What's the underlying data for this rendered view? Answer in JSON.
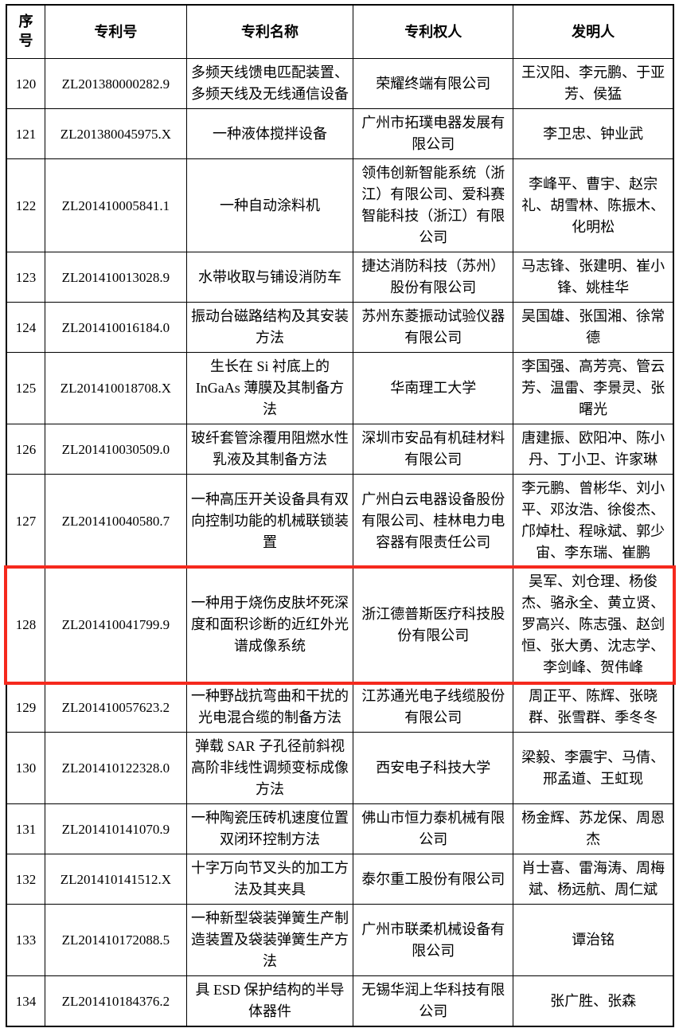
{
  "page": {
    "background": "#ffffff"
  },
  "table": {
    "headers": [
      "序号",
      "专利号",
      "专利名称",
      "专利权人",
      "发明人"
    ],
    "rows": [
      {
        "no": "120",
        "patent_no": "ZL201380000282.9",
        "title": "多频天线馈电匹配装置、多频天线及无线通信设备",
        "assignee": "荣耀终端有限公司",
        "inventors": "王汉阳、李元鹏、于亚芳、侯猛"
      },
      {
        "no": "121",
        "patent_no": "ZL201380045975.X",
        "title": "一种液体搅拌设备",
        "assignee": "广州市拓璞电器发展有限公司",
        "inventors": "李卫忠、钟业武"
      },
      {
        "no": "122",
        "patent_no": "ZL201410005841.1",
        "title": "一种自动涂料机",
        "assignee": "领伟创新智能系统（浙江）有限公司、爱科赛智能科技（浙江）有限公司",
        "inventors": "李峰平、曹宇、赵宗礼、胡雪林、陈振木、化明松"
      },
      {
        "no": "123",
        "patent_no": "ZL201410013028.9",
        "title": "水带收取与铺设消防车",
        "assignee": "捷达消防科技（苏州）股份有限公司",
        "inventors": "马志锋、张建明、崔小锋、姚桂华"
      },
      {
        "no": "124",
        "patent_no": "ZL201410016184.0",
        "title": "振动台磁路结构及其安装方法",
        "assignee": "苏州东菱振动试验仪器有限公司",
        "inventors": "吴国雄、张国湘、徐常德"
      },
      {
        "no": "125",
        "patent_no": "ZL201410018708.X",
        "title": "生长在 Si 衬底上的 InGaAs 薄膜及其制备方法",
        "assignee": "华南理工大学",
        "inventors": "李国强、高芳亮、管云芳、温雷、李景灵、张曙光"
      },
      {
        "no": "126",
        "patent_no": "ZL201410030509.0",
        "title": "玻纤套管涂覆用阻燃水性乳液及其制备方法",
        "assignee": "深圳市安品有机硅材料有限公司",
        "inventors": "唐建振、欧阳冲、陈小丹、丁小卫、许家琳"
      },
      {
        "no": "127",
        "patent_no": "ZL201410040580.7",
        "title": "一种高压开关设备具有双向控制功能的机械联锁装置",
        "assignee": "广州白云电器设备股份有限公司、桂林电力电容器有限责任公司",
        "inventors": "李元鹏、曾彬华、刘小平、邓汝浩、徐俊杰、邝焯杜、程咏斌、郭少宙、李东瑞、崔鹏"
      },
      {
        "no": "128",
        "patent_no": "ZL201410041799.9",
        "title": "一种用于烧伤皮肤坏死深度和面积诊断的近红外光谱成像系统",
        "assignee": "浙江德普斯医疗科技股份有限公司",
        "inventors": "吴军、刘仓理、杨俊杰、骆永全、黄立贤、罗高兴、陈志强、赵剑恒、张大勇、沈志学、李剑峰、贺伟峰"
      },
      {
        "no": "129",
        "patent_no": "ZL201410057623.2",
        "title": "一种野战抗弯曲和干扰的光电混合缆的制备方法",
        "assignee": "江苏通光电子线缆股份有限公司",
        "inventors": "周正平、陈辉、张晓群、张雪群、季冬冬"
      },
      {
        "no": "130",
        "patent_no": "ZL201410122328.0",
        "title": "弹载 SAR 子孔径前斜视高阶非线性调频变标成像方法",
        "assignee": "西安电子科技大学",
        "inventors": "梁毅、李震宇、马倩、邢孟道、王虹现"
      },
      {
        "no": "131",
        "patent_no": "ZL201410141070.9",
        "title": "一种陶瓷压砖机速度位置双闭环控制方法",
        "assignee": "佛山市恒力泰机械有限公司",
        "inventors": "杨金辉、苏龙保、周恩杰"
      },
      {
        "no": "132",
        "patent_no": "ZL201410141512.X",
        "title": "十字万向节叉头的加工方法及其夹具",
        "assignee": "泰尔重工股份有限公司",
        "inventors": "肖士喜、雷海涛、周梅斌、杨远航、周仁斌"
      },
      {
        "no": "133",
        "patent_no": "ZL201410172088.5",
        "title": "一种新型袋装弹簧生产制造装置及袋装弹簧生产方法",
        "assignee": "广州市联柔机械设备有限公司",
        "inventors": "谭治铭"
      },
      {
        "no": "134",
        "patent_no": "ZL201410184376.2",
        "title": "具 ESD 保护结构的半导体器件",
        "assignee": "无锡华润上华科技有限公司",
        "inventors": "张广胜、张森"
      }
    ]
  },
  "highlight": {
    "row_no": "128",
    "color": "#f5291d"
  }
}
